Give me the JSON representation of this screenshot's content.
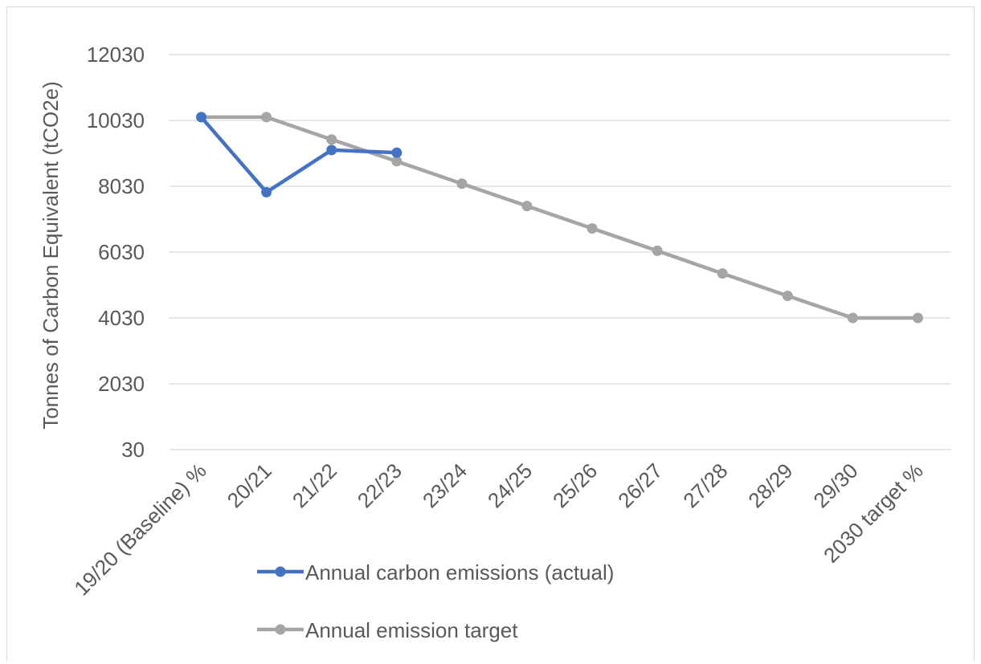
{
  "chart_data": {
    "type": "line",
    "title": "",
    "xlabel": "",
    "ylabel": "Tonnes of Carbon Equivalent (tCO2e)",
    "ylim": [
      30,
      12030
    ],
    "yticks": [
      30,
      2030,
      4030,
      6030,
      8030,
      10030,
      12030
    ],
    "grid": true,
    "legend_position": "bottom",
    "categories": [
      "19/20 (Baseline) %",
      "20/21",
      "21/22",
      "22/23",
      "23/24",
      "24/25",
      "25/26",
      "26/27",
      "27/28",
      "28/29",
      "29/30",
      "2030 target %"
    ],
    "series": [
      {
        "name": "Annual carbon emissions (actual)",
        "color": "#4472c4",
        "values": [
          10130,
          7850,
          9130,
          9050,
          null,
          null,
          null,
          null,
          null,
          null,
          null,
          null
        ]
      },
      {
        "name": "Annual emission target",
        "color": "#a5a5a5",
        "values": [
          10130,
          10130,
          9450,
          8790,
          8110,
          7430,
          6750,
          6070,
          5380,
          4700,
          4030,
          4030
        ]
      }
    ]
  }
}
